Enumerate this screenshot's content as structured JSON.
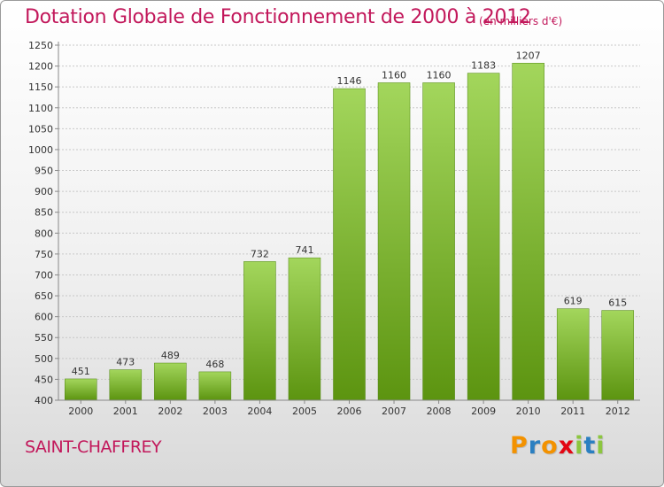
{
  "title": "Dotation Globale de Fonctionnement de 2000 à 2012",
  "unit_note": "(en milliers d'€)",
  "commune": "SAINT-CHAFFREY",
  "logo": {
    "text": "Proxiti",
    "letters": [
      "P",
      "r",
      "o",
      "x",
      "i",
      "t",
      "i"
    ],
    "colors": [
      "#f39200",
      "#2a7fc1",
      "#f39200",
      "#e30613",
      "#8cc63f",
      "#2a7fc1",
      "#8cc63f"
    ]
  },
  "colors": {
    "bar_top": "#a3d65c",
    "bar_bottom": "#5c9410",
    "title": "#c2185b",
    "grid": "#c8c8c8"
  },
  "chart_data": {
    "type": "bar",
    "title": "Dotation Globale de Fonctionnement de 2000 à 2012",
    "subtitle": "(en milliers d'€)",
    "categories": [
      "2000",
      "2001",
      "2002",
      "2003",
      "2004",
      "2005",
      "2006",
      "2007",
      "2008",
      "2009",
      "2010",
      "2011",
      "2012"
    ],
    "values": [
      451,
      473,
      489,
      468,
      732,
      741,
      1146,
      1160,
      1160,
      1183,
      1207,
      619,
      615
    ],
    "xlabel": "",
    "ylabel": "",
    "ylim": [
      400,
      1250
    ],
    "yticks": [
      400,
      450,
      500,
      550,
      600,
      650,
      700,
      750,
      800,
      850,
      900,
      950,
      1000,
      1050,
      1100,
      1150,
      1200,
      1250
    ],
    "grid": true,
    "legend": "none"
  }
}
